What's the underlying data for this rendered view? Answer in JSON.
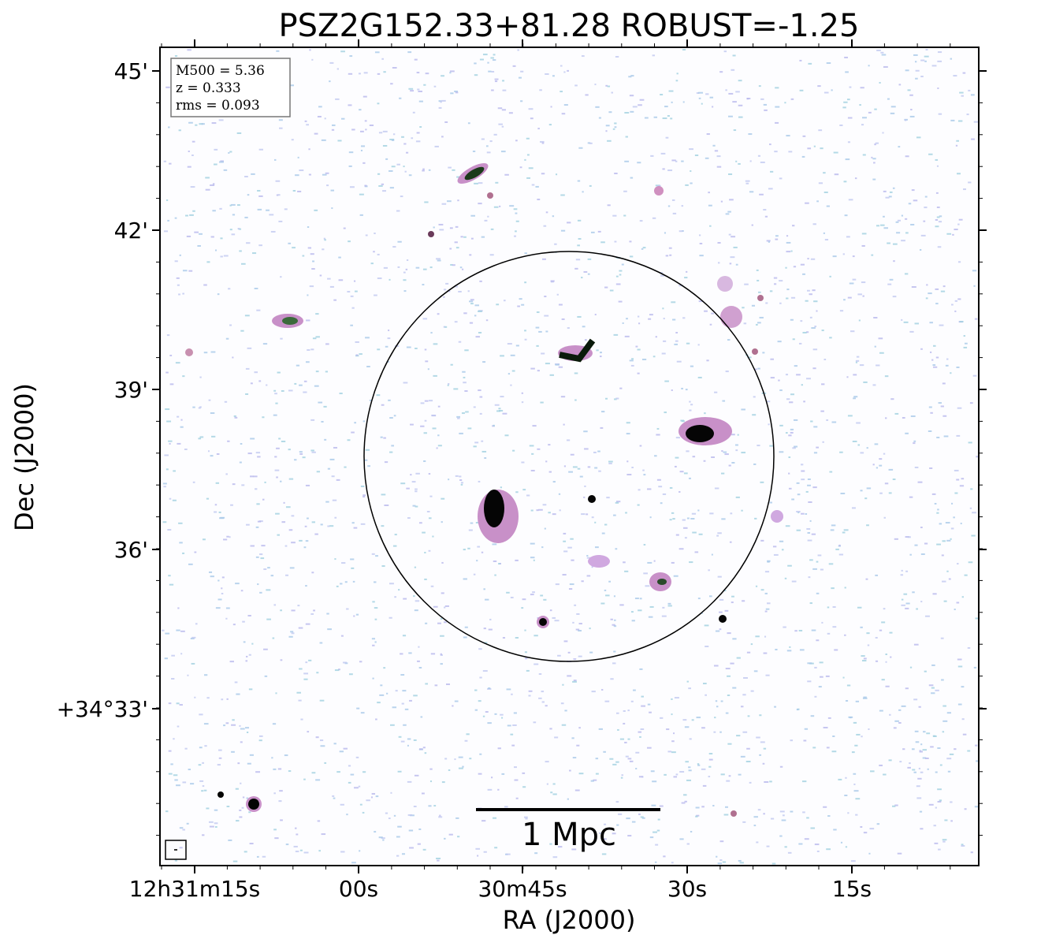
{
  "title": "PSZ2G152.33+81.28 ROBUST=-1.25",
  "x_axis": {
    "label": "RA (J2000)",
    "ticks": [
      "12h31m15s",
      "00s",
      "30m45s",
      "30s",
      "15s"
    ]
  },
  "y_axis": {
    "label": "Dec (J2000)",
    "ticks": [
      "45'",
      "42'",
      "39'",
      "36'",
      "+34°33'"
    ]
  },
  "info_box": [
    "M500 = 5.36",
    "z = 0.333",
    "rms = 0.093"
  ],
  "scale_bar": "1 Mpc"
}
